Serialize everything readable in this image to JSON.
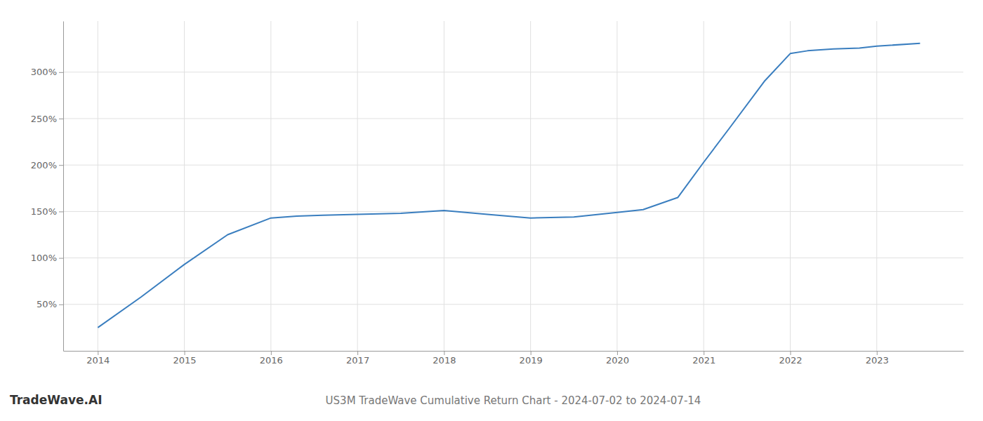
{
  "chart_data": {
    "type": "line",
    "title": "US3M TradeWave Cumulative Return Chart - 2024-07-02 to 2024-07-14",
    "annotations": [
      "TradeWave.AI"
    ],
    "color": "#3a7ebf",
    "x": [
      2014.0,
      2014.5,
      2015.0,
      2015.5,
      2016.0,
      2016.3,
      2016.6,
      2017.0,
      2017.5,
      2018.0,
      2018.5,
      2019.0,
      2019.5,
      2020.0,
      2020.3,
      2020.7,
      2021.0,
      2021.3,
      2021.7,
      2022.0,
      2022.2,
      2022.5,
      2022.8,
      2023.0,
      2023.5
    ],
    "values": [
      25,
      58,
      93,
      125,
      143,
      145,
      146,
      147,
      148,
      151,
      147,
      143,
      144,
      149,
      152,
      165,
      203,
      240,
      290,
      320,
      323,
      325,
      326,
      328,
      331
    ],
    "xlim": [
      2013.6,
      2024.0
    ],
    "ylim": [
      0,
      355
    ],
    "xticks": [
      2014,
      2015,
      2016,
      2017,
      2018,
      2019,
      2020,
      2021,
      2022,
      2023
    ],
    "yticks": [
      {
        "value": 50,
        "label": "50%"
      },
      {
        "value": 100,
        "label": "100%"
      },
      {
        "value": 150,
        "label": "150%"
      },
      {
        "value": 200,
        "label": "200%"
      },
      {
        "value": 250,
        "label": "250%"
      },
      {
        "value": 300,
        "label": "300%"
      }
    ],
    "grid": true
  }
}
